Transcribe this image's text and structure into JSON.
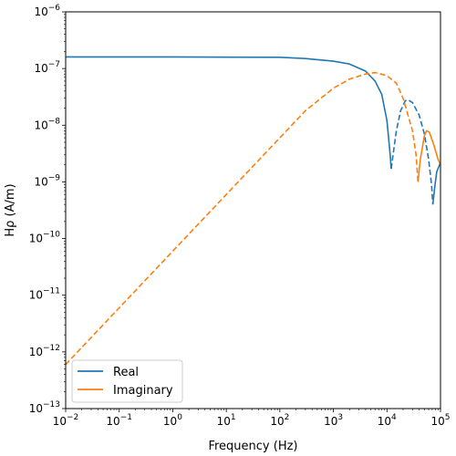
{
  "chart_data": {
    "type": "line",
    "xlabel": "Frequency (Hz)",
    "ylabel": "Hρ (A/m)",
    "xscale": "log",
    "yscale": "log",
    "xlim": [
      0.01,
      100000
    ],
    "ylim": [
      1e-13,
      1e-06
    ],
    "x_tick_exponents": [
      -2,
      -1,
      0,
      1,
      2,
      3,
      4,
      5
    ],
    "y_tick_exponents": [
      -13,
      -12,
      -11,
      -10,
      -9,
      -8,
      -7,
      -6
    ],
    "tick_base": "10",
    "grid": false,
    "legend": {
      "position": "lower-left",
      "entries": [
        {
          "label": "Real",
          "color": "#1f77b4"
        },
        {
          "label": "Imaginary",
          "color": "#ff7f0e"
        }
      ]
    },
    "series": [
      {
        "name": "Real",
        "color": "#1f77b4",
        "segments": [
          {
            "style": "solid",
            "points": [
              [
                0.01,
                1.6e-07
              ],
              [
                1,
                1.6e-07
              ],
              [
                100,
                1.58e-07
              ],
              [
                300,
                1.5e-07
              ],
              [
                1000,
                1.35e-07
              ],
              [
                2000,
                1.2e-07
              ],
              [
                4000,
                9e-08
              ],
              [
                6000,
                6e-08
              ],
              [
                8000,
                3.5e-08
              ],
              [
                10000,
                1.2e-08
              ],
              [
                11500,
                3e-09
              ],
              [
                12000,
                1.7e-09
              ]
            ]
          },
          {
            "style": "dashed",
            "points": [
              [
                12000,
                1.7e-09
              ],
              [
                13000,
                3e-09
              ],
              [
                15000,
                8e-09
              ],
              [
                18000,
                1.8e-08
              ],
              [
                22000,
                2.7e-08
              ],
              [
                25000,
                2.8e-08
              ],
              [
                30000,
                2.5e-08
              ],
              [
                40000,
                1.5e-08
              ],
              [
                50000,
                7e-09
              ],
              [
                60000,
                2.5e-09
              ],
              [
                68000,
                9e-10
              ],
              [
                72000,
                4e-10
              ]
            ]
          },
          {
            "style": "solid",
            "points": [
              [
                72000,
                4e-10
              ],
              [
                78000,
                8e-10
              ],
              [
                85000,
                1.5e-09
              ],
              [
                100000,
                2.2e-09
              ]
            ]
          }
        ]
      },
      {
        "name": "Imaginary",
        "color": "#ff7f0e",
        "segments": [
          {
            "style": "dashed",
            "points": [
              [
                0.01,
                6e-13
              ],
              [
                1,
                6e-11
              ],
              [
                100,
                6e-09
              ],
              [
                300,
                1.8e-08
              ],
              [
                1000,
                4.5e-08
              ],
              [
                2000,
                6.5e-08
              ],
              [
                4000,
                8e-08
              ],
              [
                6000,
                8.5e-08
              ],
              [
                10000,
                7.5e-08
              ],
              [
                15000,
                5.5e-08
              ],
              [
                20000,
                3e-08
              ],
              [
                30000,
                8e-09
              ],
              [
                35000,
                3e-09
              ],
              [
                38000,
                1e-09
              ]
            ]
          },
          {
            "style": "solid",
            "points": [
              [
                38000,
                1e-09
              ],
              [
                42000,
                2.5e-09
              ],
              [
                50000,
                6.5e-09
              ],
              [
                55000,
                8e-09
              ],
              [
                62000,
                7.5e-09
              ],
              [
                75000,
                4.5e-09
              ],
              [
                90000,
                2.5e-09
              ],
              [
                100000,
                2e-09
              ]
            ]
          }
        ]
      }
    ]
  }
}
